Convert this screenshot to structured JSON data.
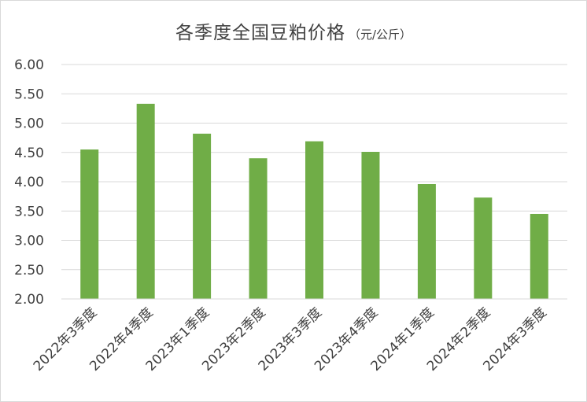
{
  "chart_data": {
    "type": "bar",
    "title": "各季度全国豆粕价格",
    "unit": "（元/公斤）",
    "categories": [
      "2022年3季度",
      "2022年4季度",
      "2023年1季度",
      "2023年2季度",
      "2023年3季度",
      "2023年4季度",
      "2024年1季度",
      "2024年2季度",
      "2024年3季度"
    ],
    "values": [
      4.55,
      5.33,
      4.82,
      4.4,
      4.69,
      4.51,
      3.96,
      3.73,
      3.45
    ],
    "ylim": [
      2.0,
      6.0
    ],
    "yticks": [
      "2.00",
      "2.50",
      "3.00",
      "3.50",
      "4.00",
      "4.50",
      "5.00",
      "5.50",
      "6.00"
    ],
    "xlabel": "",
    "ylabel": "",
    "grid": true,
    "legend": "none",
    "colors": {
      "bar": "#70ad47",
      "grid": "#d9d9d9",
      "text": "#404040"
    }
  }
}
